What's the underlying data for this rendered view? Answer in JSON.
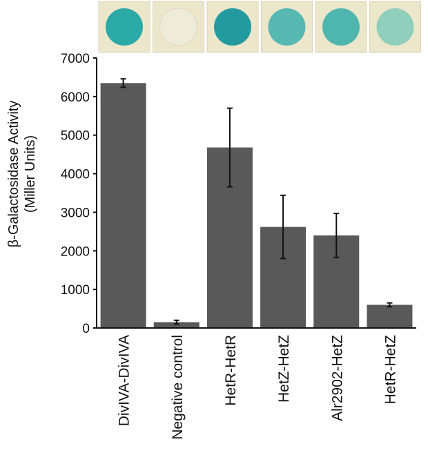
{
  "chart_data": {
    "type": "bar",
    "title": "",
    "xlabel": "",
    "ylabel_line1": "β-Galactosidase Activity",
    "ylabel_line2": "(Miller Units)",
    "ylim": [
      0,
      7000
    ],
    "yticks": [
      0,
      1000,
      2000,
      3000,
      4000,
      5000,
      6000,
      7000
    ],
    "categories": [
      "DivIVA-DivIVA",
      "Negative control",
      "HetR-HetR",
      "HetZ-HetZ",
      "Alr2902-HetZ",
      "HetR-HetZ"
    ],
    "values": [
      6350,
      150,
      4680,
      2620,
      2400,
      600
    ],
    "errors": [
      110,
      50,
      1020,
      820,
      570,
      50
    ],
    "bar_color": "#595959",
    "grid": false,
    "legend": "none",
    "colony_spots": [
      {
        "spot_color": "#2aa9a7",
        "plate_color": "#ece7cb"
      },
      {
        "spot_color": "#eeebd8",
        "plate_color": "#ece7cb"
      },
      {
        "spot_color": "#239b9e",
        "plate_color": "#ece7cb"
      },
      {
        "spot_color": "#58b9b2",
        "plate_color": "#ece7cb"
      },
      {
        "spot_color": "#4fb6ae",
        "plate_color": "#ece7cb"
      },
      {
        "spot_color": "#8fcfbb",
        "plate_color": "#ece7cb"
      }
    ]
  }
}
